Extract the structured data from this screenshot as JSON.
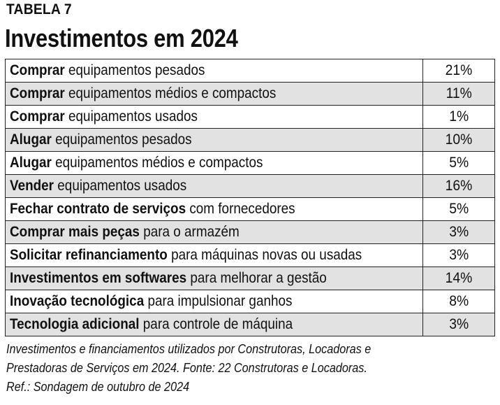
{
  "header": {
    "label": "TABELA 7",
    "title": "Investimentos em 2024"
  },
  "chart_data": {
    "type": "table",
    "rows": [
      {
        "bold": "Comprar",
        "rest": " equipamentos pesados",
        "value": "21%"
      },
      {
        "bold": "Comprar",
        "rest": " equipamentos médios e compactos",
        "value": "11%"
      },
      {
        "bold": "Comprar",
        "rest": " equipamentos usados",
        "value": "1%"
      },
      {
        "bold": "Alugar",
        "rest": " equipamentos pesados",
        "value": "10%"
      },
      {
        "bold": "Alugar",
        "rest": " equipamentos médios e compactos",
        "value": "5%"
      },
      {
        "bold": "Vender",
        "rest": " equipamentos usados",
        "value": "16%"
      },
      {
        "bold": "Fechar contrato de serviços",
        "rest": " com fornecedores",
        "value": "5%"
      },
      {
        "bold": "Comprar mais peças",
        "rest": " para o armazém",
        "value": "3%"
      },
      {
        "bold": "Solicitar refinanciamento",
        "rest": " para máquinas novas ou usadas",
        "value": "3%"
      },
      {
        "bold": "Investimentos em softwares",
        "rest": " para melhorar a gestão",
        "value": "14%"
      },
      {
        "bold": "Inovação tecnológica",
        "rest": " para impulsionar ganhos",
        "value": "8%"
      },
      {
        "bold": "Tecnologia adicional",
        "rest": " para controle de máquina",
        "value": "3%"
      }
    ]
  },
  "footer": {
    "note_line1": "Investimentos e financiamentos utilizados por Construtoras, Locadoras e",
    "note_line2": "Prestadoras de Serviços em 2024. Fonte: 22 Construtoras e Locadoras.",
    "ref": "Ref.: Sondagem de outubro de 2024"
  },
  "colors": {
    "row_shade": "#e2e2e2",
    "border": "#222222"
  }
}
